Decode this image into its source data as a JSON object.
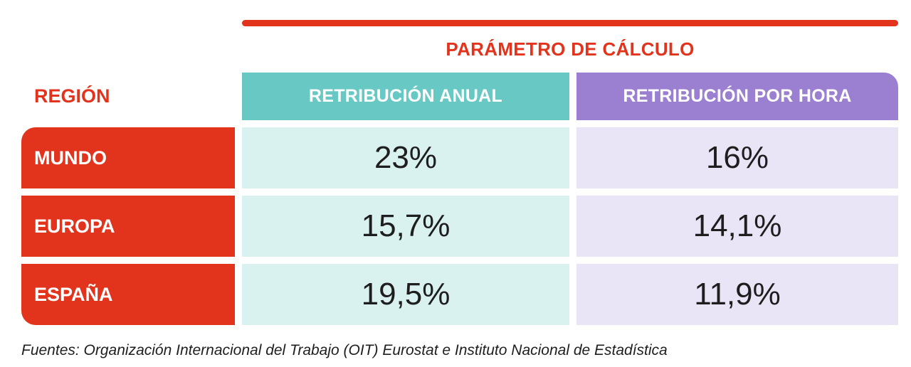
{
  "table": {
    "group_title": "PARÁMETRO DE CÁLCULO",
    "region_label": "REGIÓN",
    "col_anual": "RETRIBUCIÓN ANUAL",
    "col_hora": "RETRIBUCIÓN POR HORA",
    "rows": [
      {
        "region": "MUNDO",
        "anual": "23%",
        "hora": "16%"
      },
      {
        "region": "EUROPA",
        "anual": "15,7%",
        "hora": "14,1%"
      },
      {
        "region": "ESPAÑA",
        "anual": "19,5%",
        "hora": "11,9%"
      }
    ]
  },
  "footer": {
    "source": "Fuentes: Organización Internacional del Trabajo (OIT) Eurostat e Instituto Nacional de Estadística"
  },
  "colors": {
    "red": "#E2331C",
    "teal_header": "#68C9C4",
    "teal_cell": "#D9F1EF",
    "purple_header": "#9B80D2",
    "purple_cell": "#E9E4F6",
    "text_dark": "#1E1E1E"
  },
  "chart_data": {
    "type": "table",
    "title": "PARÁMETRO DE CÁLCULO",
    "columns": [
      "REGIÓN",
      "RETRIBUCIÓN ANUAL",
      "RETRIBUCIÓN POR HORA"
    ],
    "rows": [
      [
        "MUNDO",
        "23%",
        "16%"
      ],
      [
        "EUROPA",
        "15,7%",
        "14,1%"
      ],
      [
        "ESPAÑA",
        "19,5%",
        "11,9%"
      ]
    ],
    "categories": [
      "MUNDO",
      "EUROPA",
      "ESPAÑA"
    ],
    "series": [
      {
        "name": "RETRIBUCIÓN ANUAL",
        "values": [
          23,
          15.7,
          19.5
        ]
      },
      {
        "name": "RETRIBUCIÓN POR HORA",
        "values": [
          16,
          14.1,
          11.9
        ]
      }
    ],
    "note": "Fuentes: Organización Internacional del Trabajo (OIT) Eurostat e Instituto Nacional de Estadística"
  }
}
